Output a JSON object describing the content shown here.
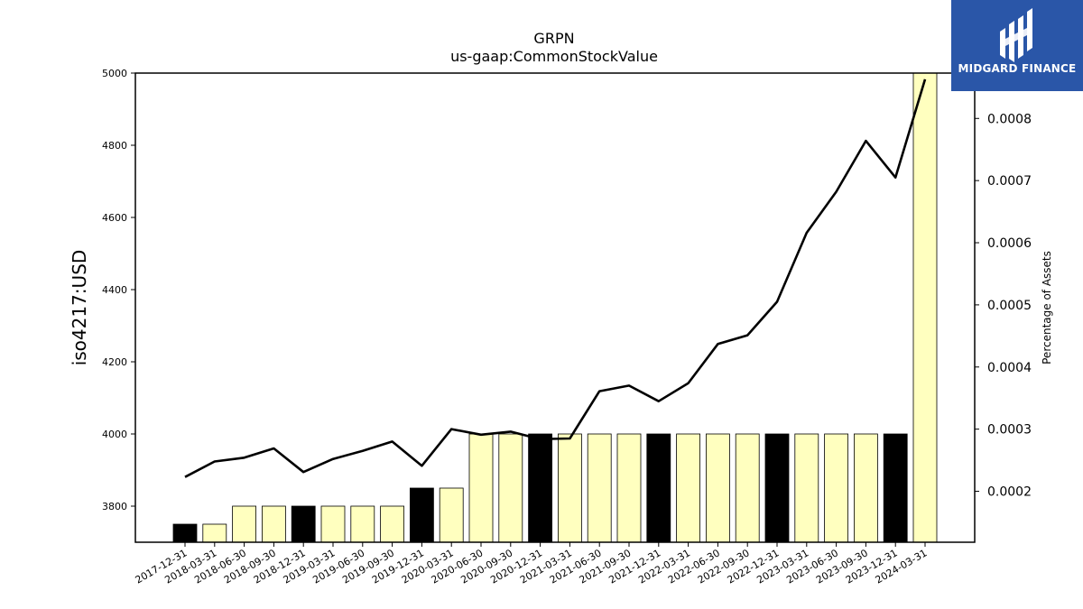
{
  "chart_data": {
    "type": "bar",
    "title": "GRPN",
    "subtitle": "us-gaap:CommonStockValue",
    "ylabel": "iso4217:USD",
    "y2label": "Percentage of Assets",
    "ylim": [
      3700,
      5000
    ],
    "y2lim": [
      0.000118,
      0.000873
    ],
    "yticks": [
      3800,
      4000,
      4200,
      4400,
      4600,
      4800,
      5000
    ],
    "y2ticks": [
      "0.0002",
      "0.0003",
      "0.0004",
      "0.0005",
      "0.0006",
      "0.0007",
      "0.0008"
    ],
    "categories": [
      "2017-12-31",
      "2018-03-31",
      "2018-06-30",
      "2018-09-30",
      "2018-12-31",
      "2019-03-31",
      "2019-06-30",
      "2019-09-30",
      "2019-12-31",
      "2020-03-31",
      "2020-06-30",
      "2020-09-30",
      "2020-12-31",
      "2021-03-31",
      "2021-06-30",
      "2021-09-30",
      "2021-12-31",
      "2022-03-31",
      "2022-06-30",
      "2022-09-30",
      "2022-12-31",
      "2023-03-31",
      "2023-06-30",
      "2023-09-30",
      "2023-12-31",
      "2024-03-31"
    ],
    "series": [
      {
        "type": "bar",
        "values": [
          3750,
          3750,
          3800,
          3800,
          3800,
          3800,
          3800,
          3800,
          3850,
          3850,
          4000,
          4000,
          4000,
          4000,
          4000,
          4000,
          4000,
          4000,
          4000,
          4000,
          4000,
          4000,
          4000,
          4000,
          4000,
          5000
        ],
        "colors": [
          "#000000",
          "#ffffbf",
          "#ffffbf",
          "#ffffbf",
          "#000000",
          "#ffffbf",
          "#ffffbf",
          "#ffffbf",
          "#000000",
          "#ffffbf",
          "#ffffbf",
          "#ffffbf",
          "#000000",
          "#ffffbf",
          "#ffffbf",
          "#ffffbf",
          "#000000",
          "#ffffbf",
          "#ffffbf",
          "#ffffbf",
          "#000000",
          "#ffffbf",
          "#ffffbf",
          "#ffffbf",
          "#000000",
          "#ffffbf"
        ]
      },
      {
        "type": "line",
        "axis": "right",
        "color": "#000000",
        "values": [
          0.000223,
          0.000248,
          0.000254,
          0.000269,
          0.000231,
          0.000252,
          0.000265,
          0.00028,
          0.000241,
          0.0003,
          0.000291,
          0.000296,
          0.000284,
          0.000285,
          0.000361,
          0.00037,
          0.000345,
          0.000374,
          0.000437,
          0.000451,
          0.000505,
          0.000616,
          0.000682,
          0.000764,
          0.000705,
          0.000863
        ]
      }
    ],
    "grid": false
  },
  "logo": {
    "name": "MIDGARD FINANCE",
    "bg": "#2a56a8"
  }
}
